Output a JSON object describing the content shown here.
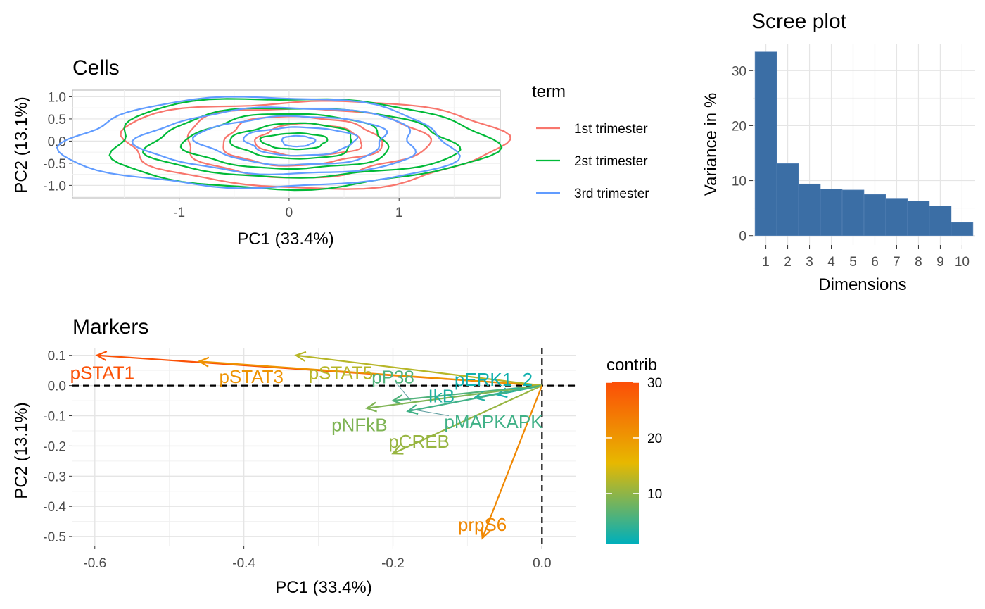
{
  "chart_data": [
    {
      "id": "cells",
      "type": "line",
      "title": "Cells",
      "xlabel": "PC1 (33.4%)",
      "ylabel": "PC2 (13.1%)",
      "xlim": [
        -1.97,
        1.92
      ],
      "ylim": [
        -1.28,
        1.15
      ],
      "x_ticks": [
        -1,
        0,
        1
      ],
      "x_tick_labels": [
        "-1",
        "0",
        "1"
      ],
      "y_ticks": [
        -1.0,
        -0.5,
        0.0,
        0.5,
        1.0
      ],
      "y_tick_labels": [
        "-1.0",
        "-0.5",
        "0.0",
        "0.5",
        "1.0"
      ],
      "grid": true,
      "legend": {
        "title": "term",
        "position": "right"
      },
      "series": [
        {
          "name": "1st trimester",
          "color": "#F8766D",
          "contours": [
            {
              "cx": 0.2,
              "cy": -0.05,
              "rx": 1.72,
              "ry": 0.98
            },
            {
              "cx": 0.12,
              "cy": -0.02,
              "rx": 1.1,
              "ry": 0.78
            },
            {
              "cx": 0.1,
              "cy": 0.0,
              "rx": 0.72,
              "ry": 0.55
            },
            {
              "cx": 0.18,
              "cy": 0.02,
              "rx": 0.48,
              "ry": 0.36
            }
          ]
        },
        {
          "name": "2st trimester",
          "color": "#00BA38",
          "contours": [
            {
              "cx": 0.05,
              "cy": -0.05,
              "rx": 1.72,
              "ry": 1.02
            },
            {
              "cx": 0.1,
              "cy": -0.05,
              "rx": 1.38,
              "ry": 0.78
            },
            {
              "cx": 0.0,
              "cy": -0.02,
              "rx": 0.92,
              "ry": 0.62
            },
            {
              "cx": 0.05,
              "cy": 0.0,
              "rx": 0.55,
              "ry": 0.4
            },
            {
              "cx": 0.05,
              "cy": 0.0,
              "rx": 0.3,
              "ry": 0.18
            }
          ]
        },
        {
          "name": "3rd trimester",
          "color": "#619CFF",
          "contours": [
            {
              "cx": -0.25,
              "cy": -0.05,
              "rx": 1.75,
              "ry": 1.02
            },
            {
              "cx": -0.05,
              "cy": 0.0,
              "rx": 1.25,
              "ry": 0.75
            },
            {
              "cx": 0.05,
              "cy": 0.02,
              "rx": 0.85,
              "ry": 0.55
            },
            {
              "cx": 0.1,
              "cy": 0.0,
              "rx": 0.5,
              "ry": 0.32
            },
            {
              "cx": 0.08,
              "cy": 0.0,
              "rx": 0.15,
              "ry": 0.12
            }
          ]
        }
      ]
    },
    {
      "id": "scree",
      "type": "bar",
      "title": "Scree plot",
      "xlabel": "Dimensions",
      "ylabel": "Variance in %",
      "categories": [
        "1",
        "2",
        "3",
        "4",
        "5",
        "6",
        "7",
        "8",
        "9",
        "10"
      ],
      "values": [
        33.4,
        13.1,
        9.4,
        8.5,
        8.3,
        7.5,
        6.8,
        6.3,
        5.4,
        2.4
      ],
      "ylim": [
        -1.7,
        34.9
      ],
      "y_ticks": [
        0,
        10,
        20,
        30
      ],
      "y_tick_labels": [
        "0",
        "10",
        "20",
        "30"
      ],
      "bar_color": "#3B6EA5",
      "grid": true
    },
    {
      "id": "markers",
      "type": "scatter",
      "title": "Markers",
      "xlabel": "PC1 (33.4%)",
      "ylabel": "PC2 (13.1%)",
      "xlim": [
        -0.63,
        0.045
      ],
      "ylim": [
        -0.53,
        0.125
      ],
      "x_ticks": [
        -0.6,
        -0.4,
        -0.2,
        0.0
      ],
      "x_tick_labels": [
        "-0.6",
        "-0.4",
        "-0.2",
        "0.0"
      ],
      "y_ticks": [
        -0.5,
        -0.4,
        -0.3,
        -0.2,
        -0.1,
        0.0,
        0.1
      ],
      "y_tick_labels": [
        "-0.5",
        "-0.4",
        "-0.3",
        "-0.2",
        "-0.1",
        "0.0",
        "0.1"
      ],
      "grid": true,
      "reference_lines": {
        "x": 0,
        "y": 0
      },
      "legend": {
        "title": "contrib",
        "position": "right",
        "range": [
          1,
          30
        ],
        "ticks": [
          10,
          20,
          30
        ],
        "tick_labels": [
          "10",
          "20",
          "30"
        ],
        "colors": [
          "#00AFBB",
          "#E7B800",
          "#FC4E07"
        ]
      },
      "vectors": [
        {
          "name": "pSTAT1",
          "x": -0.597,
          "y": 0.1,
          "contrib": 29.5,
          "label_x": -0.59,
          "label_y": 0.042
        },
        {
          "name": "pSTAT3",
          "x": -0.46,
          "y": 0.08,
          "contrib": 20.5,
          "label_x": -0.39,
          "label_y": 0.03
        },
        {
          "name": "pSTAT5",
          "x": -0.33,
          "y": 0.1,
          "contrib": 12.5,
          "label_x": -0.27,
          "label_y": 0.042
        },
        {
          "name": "pP38",
          "x": -0.2,
          "y": -0.05,
          "contrib": 6.0,
          "label_x": -0.2,
          "label_y": 0.028
        },
        {
          "name": "pERK1_2",
          "x": -0.06,
          "y": -0.03,
          "contrib": 2.0,
          "label_x": -0.065,
          "label_y": 0.02
        },
        {
          "name": "IkB",
          "x": -0.09,
          "y": -0.04,
          "contrib": 3.0,
          "label_x": -0.135,
          "label_y": -0.035
        },
        {
          "name": "pNFkB",
          "x": -0.235,
          "y": -0.075,
          "contrib": 9.0,
          "label_x": -0.245,
          "label_y": -0.13
        },
        {
          "name": "pMAPKAPK",
          "x": -0.18,
          "y": -0.085,
          "contrib": 5.0,
          "label_x": -0.065,
          "label_y": -0.12
        },
        {
          "name": "pCREB",
          "x": -0.2,
          "y": -0.225,
          "contrib": 10.5,
          "label_x": -0.165,
          "label_y": -0.185
        },
        {
          "name": "prpS6",
          "x": -0.08,
          "y": -0.505,
          "contrib": 22.0,
          "label_x": -0.08,
          "label_y": -0.46
        }
      ],
      "label_leaders": [
        {
          "from_x": -0.196,
          "from_y": 0.01,
          "to_x": -0.176,
          "to_y": -0.05
        },
        {
          "from_x": -0.125,
          "from_y": -0.1,
          "to_x": -0.176,
          "to_y": -0.078
        }
      ]
    }
  ]
}
